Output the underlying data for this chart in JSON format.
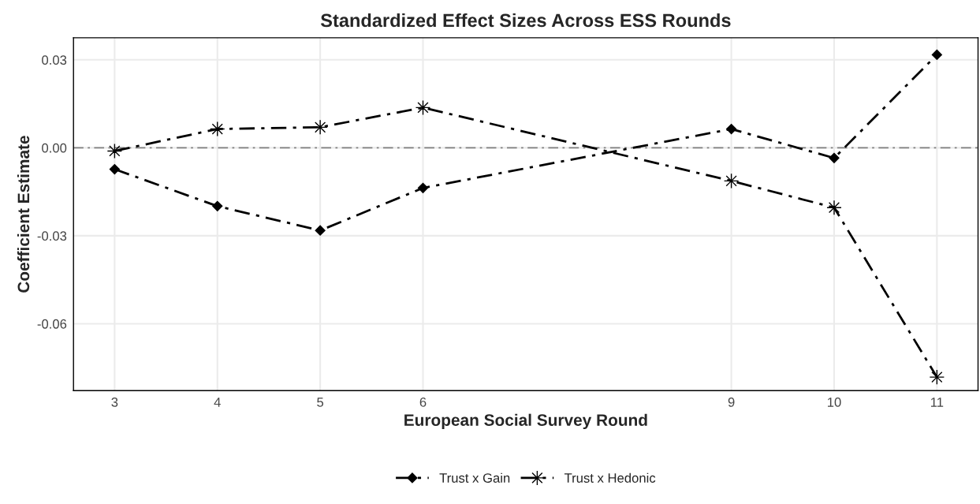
{
  "chart_data": {
    "type": "line",
    "title": "Standardized Effect Sizes Across ESS Rounds",
    "xlabel": "European Social Survey Round",
    "ylabel": "Coefficient Estimate",
    "x": [
      3,
      4,
      5,
      6,
      9,
      10,
      11
    ],
    "series": [
      {
        "name": "Trust x Gain",
        "color": "#000000",
        "marker": "diamond",
        "values": [
          -0.0073,
          -0.0199,
          -0.0282,
          -0.0137,
          0.0064,
          -0.0035,
          0.0317
        ]
      },
      {
        "name": "Trust x Hedonic",
        "color": "#000000",
        "marker": "star",
        "values": [
          -0.0011,
          0.0064,
          0.007,
          0.0137,
          -0.0113,
          -0.0204,
          -0.0782
        ]
      }
    ],
    "line_style": "dashed",
    "xlim": [
      2.6,
      11.4
    ],
    "xticks": [
      3,
      4,
      5,
      6,
      9,
      10,
      11
    ],
    "ylim": [
      -0.0828,
      0.0375
    ],
    "yticks": [
      {
        "value": -0.06,
        "label": "-0.06"
      },
      {
        "value": -0.03,
        "label": "-0.03"
      },
      {
        "value": 0,
        "label": "0.00"
      },
      {
        "value": 0.03,
        "label": "0.03"
      }
    ],
    "ref_lines": [
      {
        "axis": "y",
        "value": 0,
        "color": "#808080",
        "line_style": "dashed"
      }
    ],
    "grid": true,
    "legend": "bottom"
  }
}
